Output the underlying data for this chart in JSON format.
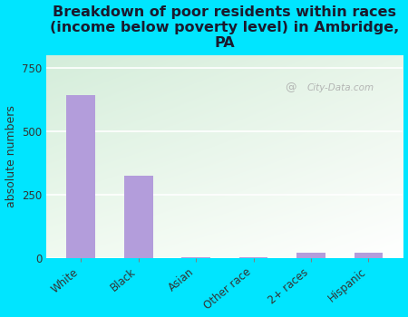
{
  "categories": [
    "White",
    "Black",
    "Asian",
    "Other race",
    "2+ races",
    "Hispanic"
  ],
  "values": [
    640,
    325,
    2,
    4,
    22,
    22
  ],
  "bar_color": "#b39ddb",
  "background_color": "#00e5ff",
  "plot_bg_topleft": "#d4edda",
  "plot_bg_topright": "#e8f5e9",
  "plot_bg_bottomleft": "#f0faf0",
  "plot_bg_bottomright": "#ffffff",
  "title": "Breakdown of poor residents within races\n(income below poverty level) in Ambridge,\nPA",
  "ylabel": "absolute numbers",
  "ylim": [
    0,
    800
  ],
  "yticks": [
    0,
    250,
    500,
    750
  ],
  "grid_color": "#ffffff",
  "watermark": "City-Data.com",
  "title_fontsize": 11.5,
  "ylabel_fontsize": 9,
  "tick_fontsize": 8.5,
  "title_color": "#1a1a2e"
}
